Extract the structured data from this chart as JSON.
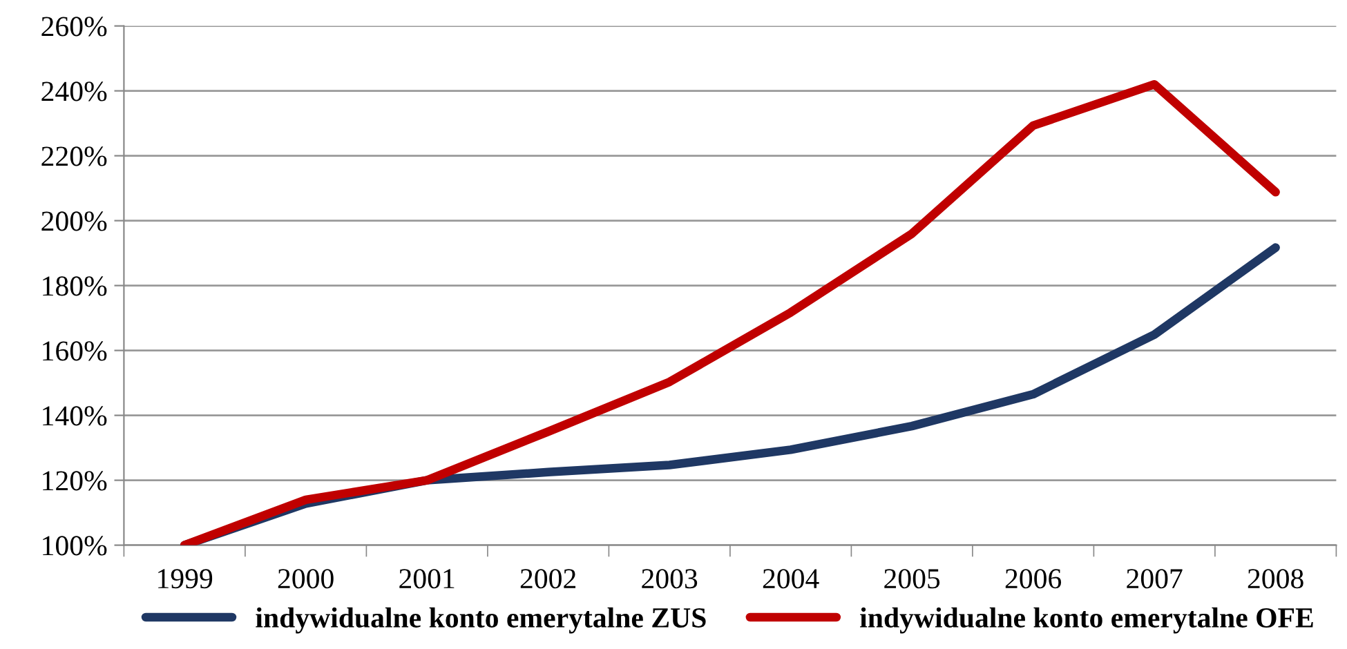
{
  "chart_data": {
    "type": "line",
    "categories": [
      "1999",
      "2000",
      "2001",
      "2002",
      "2003",
      "2004",
      "2005",
      "2006",
      "2007",
      "2008"
    ],
    "series": [
      {
        "name": "indywidualne konto emerytalne ZUS",
        "color": "#1f3864",
        "values": [
          100,
          112.8,
          120,
          122.5,
          124.7,
          129.4,
          136.7,
          146.5,
          164.9,
          191.7
        ]
      },
      {
        "name": "indywidualne konto emerytalne OFE",
        "color": "#c00000",
        "values": [
          100,
          114,
          120,
          135,
          150.3,
          171.7,
          196,
          229.3,
          242,
          208.8
        ]
      }
    ],
    "ylim": [
      100,
      260
    ],
    "yticks": [
      {
        "value": 100,
        "label": "100%"
      },
      {
        "value": 120,
        "label": "120%"
      },
      {
        "value": 140,
        "label": "140%"
      },
      {
        "value": 160,
        "label": "160%"
      },
      {
        "value": 180,
        "label": "180%"
      },
      {
        "value": 200,
        "label": "200%"
      },
      {
        "value": 220,
        "label": "220%"
      },
      {
        "value": 240,
        "label": "240%"
      },
      {
        "value": 260,
        "label": "260%"
      }
    ],
    "grid": "y",
    "legend": "bottom",
    "marker": "none",
    "line_style": "solid"
  }
}
